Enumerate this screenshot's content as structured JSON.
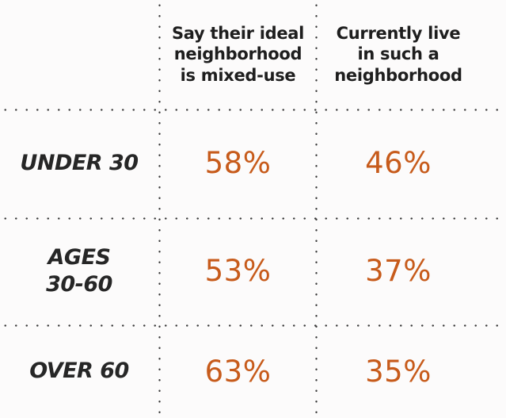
{
  "chart_data": {
    "type": "table",
    "title": "",
    "categories": [
      "UNDER 30",
      "AGES 30-60",
      "OVER 60"
    ],
    "series": [
      {
        "name": "Say their ideal neighborhood is mixed-use",
        "values": [
          58,
          53,
          63
        ]
      },
      {
        "name": "Currently live in such a neighborhood",
        "values": [
          46,
          37,
          35
        ]
      }
    ],
    "unit": "%",
    "layout_hints": {
      "grid": "dotted separators between rows and columns",
      "value_color": "#c75b1b",
      "label_style": "bold italic dark gray"
    }
  },
  "table": {
    "column_headers": {
      "ideal": "Say their ideal\nneighborhood\nis mixed-use",
      "current": "Currently live\nin such a\nneighborhood"
    },
    "rows": [
      {
        "label": "UNDER 30",
        "ideal": "58%",
        "current": "46%"
      },
      {
        "label": "AGES\n30-60",
        "ideal": "53%",
        "current": "37%"
      },
      {
        "label": "OVER 60",
        "ideal": "63%",
        "current": "35%"
      }
    ]
  },
  "colors": {
    "accent_orange": "#c75b1b",
    "text_dark": "#1e1e1e",
    "dot_gray": "#3d3d3d",
    "background": "#fcfbfb"
  }
}
